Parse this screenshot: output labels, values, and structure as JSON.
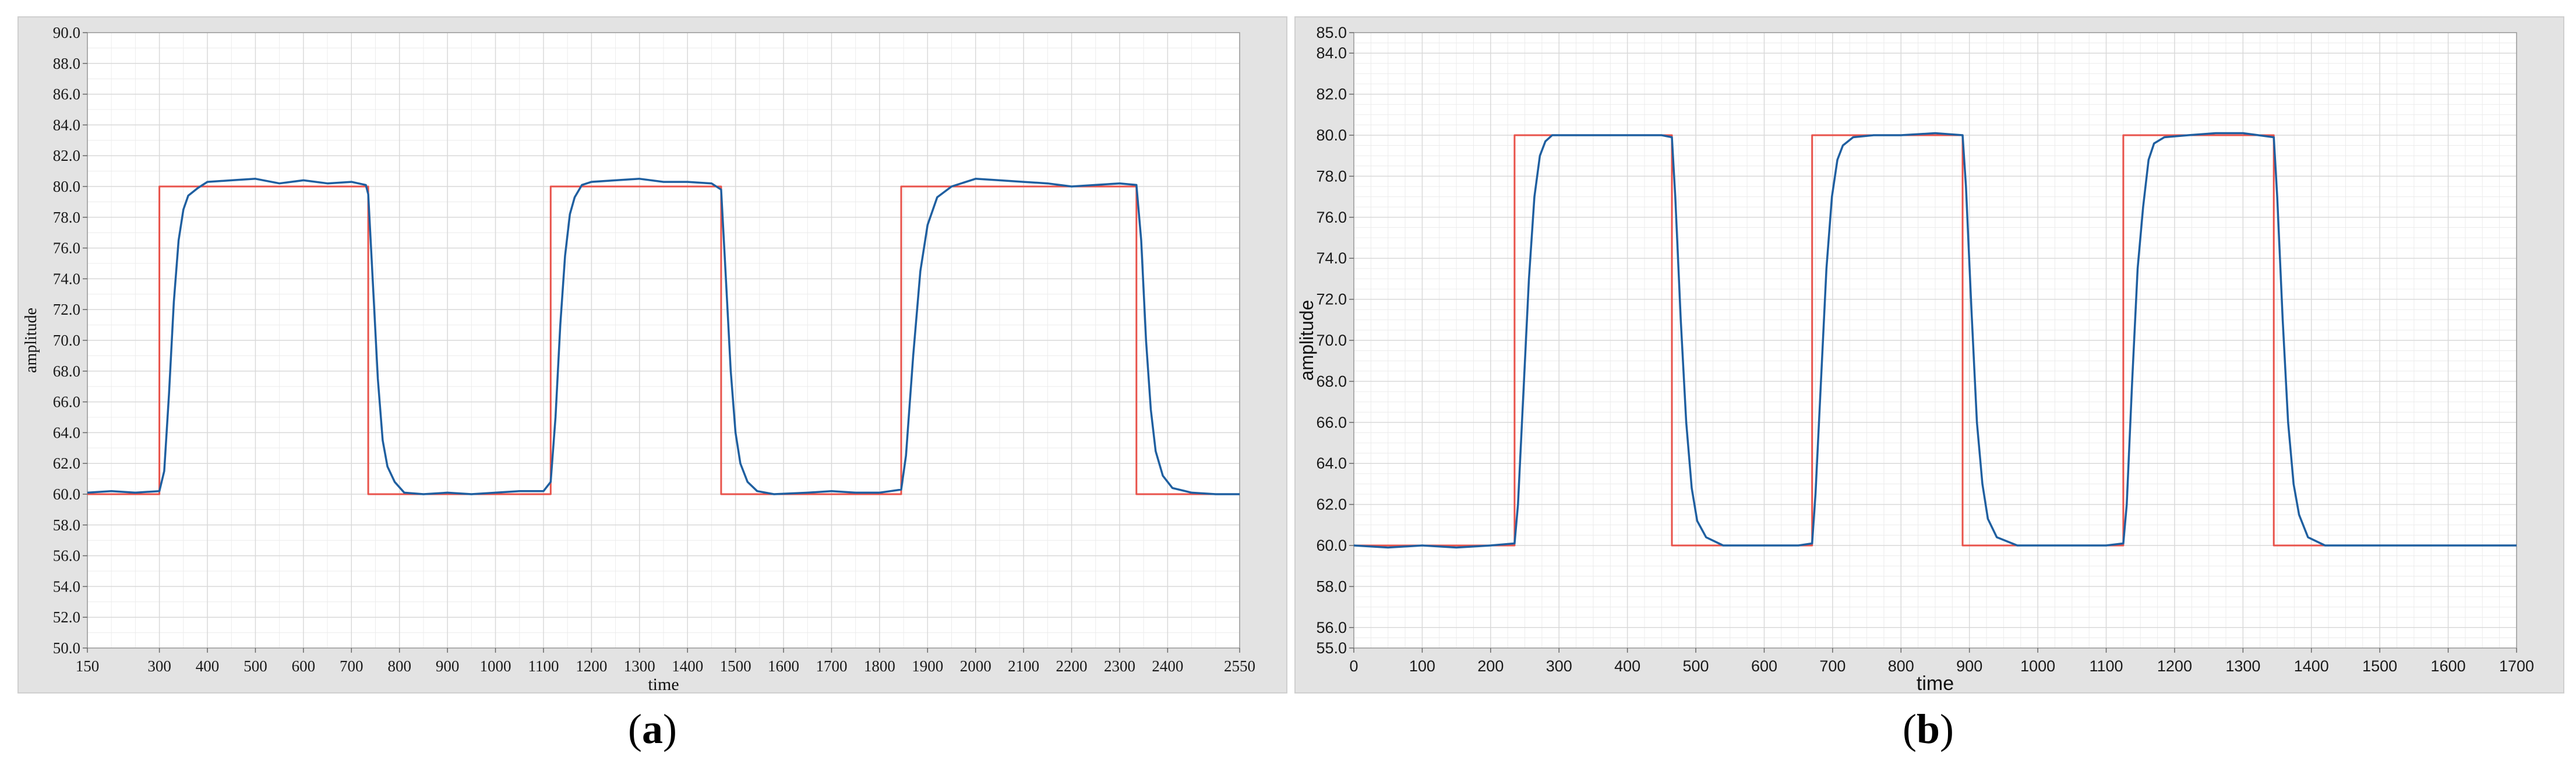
{
  "captions": {
    "a": "a",
    "b": "b"
  },
  "colors": {
    "setpoint": "#e8524a",
    "response": "#1f5fa0",
    "grid_minor": "#ececec",
    "grid_major": "#d9d9d9",
    "plot_bg": "#ffffff",
    "frame_bg": "#e3e3e3"
  },
  "chart_data": [
    {
      "type": "line",
      "panel": "a",
      "xlabel": "time",
      "ylabel": "amplitude",
      "xlim": [
        150,
        2550
      ],
      "ylim": [
        50,
        90
      ],
      "xticks": [
        150,
        300,
        400,
        500,
        600,
        700,
        800,
        900,
        1000,
        1100,
        1200,
        1300,
        1400,
        1500,
        1600,
        1700,
        1800,
        1900,
        2000,
        2100,
        2200,
        2300,
        2400,
        2550
      ],
      "xtick_labels": [
        "150",
        "300",
        "400",
        "500",
        "600",
        "700",
        "800",
        "900",
        "1000",
        "1100",
        "1200",
        "1300",
        "1400",
        "1500",
        "1600",
        "1700",
        "1800",
        "1900",
        "2000",
        "2100",
        "2200",
        "2300",
        "2400",
        "2550"
      ],
      "yticks": [
        50,
        52,
        54,
        56,
        58,
        60,
        62,
        64,
        66,
        68,
        70,
        72,
        74,
        76,
        78,
        80,
        82,
        84,
        86,
        88,
        90
      ],
      "ytick_labels": [
        "50.0",
        "52.0",
        "54.0",
        "56.0",
        "58.0",
        "60.0",
        "62.0",
        "64.0",
        "66.0",
        "68.0",
        "70.0",
        "72.0",
        "74.0",
        "76.0",
        "78.0",
        "80.0",
        "82.0",
        "84.0",
        "86.0",
        "88.0",
        "90.0"
      ],
      "grid": true,
      "series": [
        {
          "color": "#e8524a",
          "x": [
            150,
            300,
            300,
            735,
            735,
            1115,
            1115,
            1470,
            1470,
            1845,
            1845,
            2335,
            2335,
            2550
          ],
          "y": [
            60,
            60,
            80,
            80,
            60,
            60,
            80,
            80,
            60,
            60,
            80,
            80,
            60,
            60
          ]
        },
        {
          "color": "#1f5fa0",
          "x": [
            150,
            200,
            250,
            300,
            310,
            320,
            330,
            340,
            350,
            360,
            380,
            400,
            450,
            500,
            550,
            600,
            650,
            700,
            730,
            735,
            745,
            755,
            765,
            775,
            790,
            810,
            850,
            900,
            950,
            1000,
            1050,
            1100,
            1115,
            1125,
            1135,
            1145,
            1155,
            1165,
            1180,
            1200,
            1250,
            1300,
            1350,
            1400,
            1450,
            1470,
            1480,
            1490,
            1500,
            1510,
            1525,
            1545,
            1580,
            1650,
            1700,
            1750,
            1800,
            1845,
            1855,
            1870,
            1885,
            1900,
            1920,
            1950,
            2000,
            2050,
            2100,
            2150,
            2200,
            2250,
            2300,
            2335,
            2345,
            2355,
            2365,
            2375,
            2390,
            2410,
            2450,
            2500,
            2550
          ],
          "y": [
            60.1,
            60.2,
            60.1,
            60.2,
            61.5,
            66.5,
            72.5,
            76.5,
            78.5,
            79.4,
            79.9,
            80.3,
            80.4,
            80.5,
            80.2,
            80.4,
            80.2,
            80.3,
            80.1,
            79.5,
            73.5,
            67.5,
            63.5,
            61.8,
            60.8,
            60.1,
            60.0,
            60.1,
            60.0,
            60.1,
            60.2,
            60.2,
            60.8,
            65.0,
            71.0,
            75.5,
            78.2,
            79.3,
            80.1,
            80.3,
            80.4,
            80.5,
            80.3,
            80.3,
            80.2,
            79.8,
            74.0,
            68.0,
            64.0,
            62.0,
            60.8,
            60.2,
            60.0,
            60.1,
            60.2,
            60.1,
            60.1,
            60.3,
            62.5,
            69.0,
            74.5,
            77.5,
            79.3,
            80.0,
            80.5,
            80.4,
            80.3,
            80.2,
            80.0,
            80.1,
            80.2,
            80.1,
            76.5,
            70.0,
            65.5,
            62.8,
            61.2,
            60.4,
            60.1,
            60.0,
            60.0
          ]
        }
      ]
    },
    {
      "type": "line",
      "panel": "b",
      "xlabel": "time",
      "ylabel": "amplitude",
      "xlim": [
        0,
        1700
      ],
      "ylim": [
        55,
        85
      ],
      "xticks": [
        0,
        100,
        200,
        300,
        400,
        500,
        600,
        700,
        800,
        900,
        1000,
        1100,
        1200,
        1300,
        1400,
        1500,
        1600,
        1700
      ],
      "xtick_labels": [
        "0",
        "100",
        "200",
        "300",
        "400",
        "500",
        "600",
        "700",
        "800",
        "900",
        "1000",
        "1100",
        "1200",
        "1300",
        "1400",
        "1500",
        "1600",
        "1700"
      ],
      "yticks": [
        55,
        56,
        58,
        60,
        62,
        64,
        66,
        68,
        70,
        72,
        74,
        76,
        78,
        80,
        82,
        84,
        85
      ],
      "ytick_labels": [
        "55.0",
        "56.0",
        "58.0",
        "60.0",
        "62.0",
        "64.0",
        "66.0",
        "68.0",
        "70.0",
        "72.0",
        "74.0",
        "76.0",
        "78.0",
        "80.0",
        "82.0",
        "84.0",
        "85.0"
      ],
      "grid": true,
      "series": [
        {
          "color": "#e8524a",
          "x": [
            0,
            235,
            235,
            465,
            465,
            670,
            670,
            890,
            890,
            1125,
            1125,
            1345,
            1345,
            1700
          ],
          "y": [
            60,
            60,
            80,
            80,
            60,
            60,
            80,
            80,
            60,
            60,
            80,
            80,
            60,
            60
          ]
        },
        {
          "color": "#1f5fa0",
          "x": [
            0,
            50,
            100,
            150,
            200,
            235,
            240,
            248,
            256,
            264,
            272,
            280,
            290,
            300,
            350,
            400,
            450,
            465,
            470,
            478,
            486,
            494,
            502,
            515,
            540,
            600,
            650,
            670,
            675,
            683,
            691,
            699,
            707,
            715,
            730,
            760,
            800,
            850,
            890,
            895,
            903,
            911,
            919,
            927,
            940,
            970,
            1000,
            1050,
            1100,
            1125,
            1130,
            1138,
            1146,
            1154,
            1162,
            1170,
            1185,
            1220,
            1260,
            1300,
            1345,
            1350,
            1358,
            1366,
            1374,
            1382,
            1395,
            1420,
            1500,
            1600,
            1700
          ],
          "y": [
            60.0,
            59.9,
            60.0,
            59.9,
            60.0,
            60.1,
            62.0,
            67.5,
            73.0,
            77.0,
            79.0,
            79.7,
            80.0,
            80.0,
            80.0,
            80.0,
            80.0,
            79.9,
            77.0,
            71.0,
            66.0,
            62.8,
            61.2,
            60.4,
            60.0,
            60.0,
            60.0,
            60.1,
            62.5,
            68.0,
            73.5,
            77.0,
            78.8,
            79.5,
            79.9,
            80.0,
            80.0,
            80.1,
            80.0,
            77.5,
            71.5,
            66.0,
            63.0,
            61.3,
            60.4,
            60.0,
            60.0,
            60.0,
            60.0,
            60.1,
            62.0,
            68.0,
            73.5,
            76.5,
            78.8,
            79.6,
            79.9,
            80.0,
            80.1,
            80.1,
            79.9,
            77.0,
            71.0,
            66.0,
            63.0,
            61.5,
            60.4,
            60.0,
            60.0,
            60.0,
            60.0
          ]
        }
      ]
    }
  ]
}
